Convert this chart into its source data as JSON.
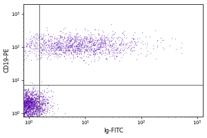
{
  "title": "",
  "xlabel": "Ig-FITC",
  "ylabel": "CD19-PE",
  "xlim_log": [
    -0.1,
    3.1
  ],
  "ylim_log": [
    -0.1,
    3.3
  ],
  "gate_x": 0.18,
  "gate_y_log": 0.85,
  "dot_color": "#5500aa",
  "dot_alpha": 0.45,
  "dot_size": 1.0,
  "background_color": "#ffffff",
  "n_pop1": 2200,
  "pop1_x_mean_log": -0.05,
  "pop1_x_std_log": 0.18,
  "pop1_y_mean_log": 0.25,
  "pop1_y_std_log": 0.22,
  "n_pop2": 1400,
  "pop2_x_mean_log": 0.85,
  "pop2_x_std_log": 0.6,
  "pop2_y_mean_log": 2.05,
  "pop2_y_std_log": 0.18
}
